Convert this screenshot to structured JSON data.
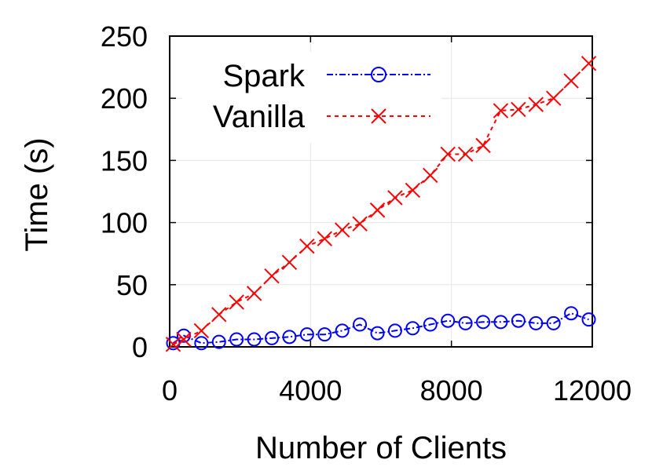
{
  "chart_data": {
    "type": "line",
    "xlabel": "Number of Clients",
    "ylabel": "Time (s)",
    "xlim": [
      0,
      12000
    ],
    "ylim": [
      0,
      250
    ],
    "xticks": [
      0,
      4000,
      8000,
      12000
    ],
    "yticks": [
      0,
      50,
      100,
      150,
      200,
      250
    ],
    "grid": true,
    "legend_position": "top-left",
    "series": [
      {
        "name": "Spark",
        "color": "#0000ff",
        "line_style": "dash-dot",
        "marker": "circle",
        "x": [
          100,
          400,
          900,
          1400,
          1900,
          2400,
          2900,
          3400,
          3900,
          4400,
          4900,
          5400,
          5900,
          6400,
          6900,
          7400,
          7900,
          8400,
          8900,
          9400,
          9900,
          10400,
          10900,
          11400,
          11900
        ],
        "y": [
          3,
          9,
          3,
          4,
          6,
          6,
          7,
          8,
          10,
          10,
          13,
          18,
          11,
          13,
          15,
          18,
          21,
          19,
          20,
          20,
          21,
          19,
          19,
          27,
          22
        ]
      },
      {
        "name": "Vanilla",
        "color": "#ff0000",
        "line_style": "dashed",
        "marker": "x",
        "x": [
          100,
          400,
          900,
          1400,
          1900,
          2400,
          2900,
          3400,
          3900,
          4400,
          4900,
          5400,
          5900,
          6400,
          6900,
          7400,
          7900,
          8400,
          8900,
          9400,
          9900,
          10400,
          10900,
          11400,
          11900
        ],
        "y": [
          2,
          6,
          13,
          26,
          36,
          43,
          57,
          68,
          81,
          87,
          94,
          99,
          110,
          120,
          126,
          138,
          155,
          155,
          162,
          190,
          191,
          195,
          200,
          214,
          228
        ]
      }
    ]
  }
}
